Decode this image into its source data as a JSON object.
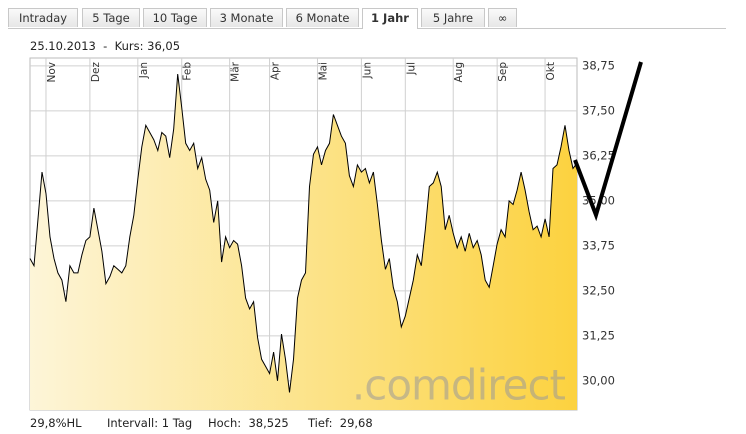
{
  "tabs": [
    "Intraday",
    "5 Tage",
    "10 Tage",
    "3 Monate",
    "6 Monate",
    "1 Jahr",
    "5 Jahre",
    "∞"
  ],
  "active_tab": 5,
  "header": "25.10.2013  -  Kurs: 36,05",
  "footer": {
    "range": "29,8%HL",
    "interval": "Intervall: 1 Tag",
    "high": "Hoch:  38,525",
    "low": "Tief:  29,68"
  },
  "watermark": ".comdirect",
  "chart_data": {
    "type": "area",
    "color": "#000000",
    "fill_from": "#fdf5d8",
    "fill_to": "#fcd23f",
    "values": [
      33.4,
      33.2,
      34.5,
      35.8,
      35.2,
      34.0,
      33.4,
      33.0,
      32.8,
      32.2,
      33.2,
      33.0,
      33.0,
      33.5,
      33.9,
      34.0,
      34.8,
      34.2,
      33.6,
      32.7,
      32.9,
      33.2,
      33.1,
      33.0,
      33.2,
      34.0,
      34.6,
      35.6,
      36.5,
      37.1,
      36.9,
      36.7,
      36.4,
      36.9,
      36.8,
      36.2,
      37.0,
      38.525,
      37.6,
      36.6,
      36.4,
      36.6,
      35.9,
      36.2,
      35.6,
      35.3,
      34.4,
      35.0,
      33.3,
      34.0,
      33.7,
      33.9,
      33.8,
      33.2,
      32.3,
      32.0,
      32.2,
      31.2,
      30.6,
      30.4,
      30.2,
      30.8,
      30.0,
      31.3,
      30.6,
      29.68,
      30.6,
      32.3,
      32.8,
      33.0,
      35.4,
      36.3,
      36.5,
      36.0,
      36.4,
      36.6,
      37.4,
      37.1,
      36.8,
      36.6,
      35.7,
      35.4,
      36.0,
      35.8,
      35.9,
      35.5,
      35.8,
      34.9,
      33.9,
      33.1,
      33.4,
      32.6,
      32.2,
      31.5,
      31.8,
      32.3,
      32.8,
      33.5,
      33.2,
      34.2,
      35.4,
      35.5,
      35.8,
      35.4,
      34.2,
      34.6,
      34.1,
      33.7,
      34.0,
      33.6,
      34.1,
      33.7,
      33.9,
      33.5,
      32.8,
      32.6,
      33.2,
      33.8,
      34.2,
      34.0,
      35.0,
      34.9,
      35.3,
      35.8,
      35.3,
      34.7,
      34.2,
      34.3,
      34.0,
      34.5,
      34.0,
      35.9,
      36.0,
      36.5,
      37.1,
      36.4,
      35.9,
      36.05
    ],
    "xlim": [
      0,
      137
    ],
    "xticks": [
      {
        "value": 4,
        "label": "Nov"
      },
      {
        "value": 15,
        "label": "Dez"
      },
      {
        "value": 27,
        "label": "Jan"
      },
      {
        "value": 38,
        "label": "Feb"
      },
      {
        "value": 50,
        "label": "Mär"
      },
      {
        "value": 60,
        "label": "Apr"
      },
      {
        "value": 72,
        "label": "Mai"
      },
      {
        "value": 83,
        "label": "Jun"
      },
      {
        "value": 94,
        "label": "Jul"
      },
      {
        "value": 106,
        "label": "Aug"
      },
      {
        "value": 117,
        "label": "Sep"
      },
      {
        "value": 129,
        "label": "Okt"
      }
    ],
    "ylim": [
      29.19,
      38.97
    ],
    "yticks": [
      {
        "value": 30,
        "label": "30,00"
      },
      {
        "value": 31.25,
        "label": "31,25"
      },
      {
        "value": 32.5,
        "label": "32,50"
      },
      {
        "value": 33.75,
        "label": "33,75"
      },
      {
        "value": 35,
        "label": "35,00"
      },
      {
        "value": 36.25,
        "label": "36,25"
      },
      {
        "value": 37.5,
        "label": "37,50"
      },
      {
        "value": 38.75,
        "label": "38,75"
      }
    ],
    "grid": true
  }
}
